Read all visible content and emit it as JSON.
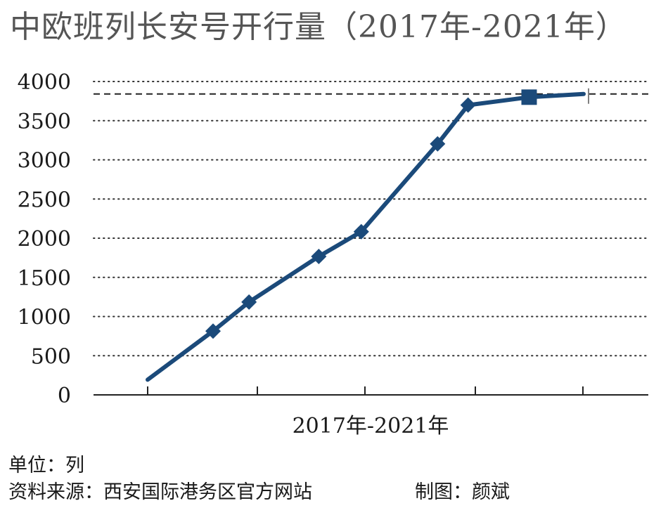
{
  "chart_data": {
    "type": "line",
    "title": "中欧班列长安号开行量（2017年-2021年）",
    "xlabel": "2017年-2021年",
    "ylabel": "",
    "ylim": [
      0,
      4000
    ],
    "yticks": [
      0,
      500,
      1000,
      1500,
      2000,
      2500,
      3000,
      3500,
      4000
    ],
    "grid": "horizontal dotted",
    "reference_line": {
      "value": 3841,
      "style": "dashed"
    },
    "series": [
      {
        "color": "#1b4a7a",
        "points": [
          {
            "x": 0,
            "y": 194,
            "marker": "none"
          },
          {
            "x": 0.6,
            "y": 814,
            "marker": "diamond"
          },
          {
            "x": 0.93,
            "y": 1185,
            "marker": "diamond"
          },
          {
            "x": 1.57,
            "y": 1767,
            "marker": "diamond"
          },
          {
            "x": 1.96,
            "y": 2083,
            "marker": "diamond"
          },
          {
            "x": 2.66,
            "y": 3204,
            "marker": "diamond"
          },
          {
            "x": 2.94,
            "y": 3699,
            "marker": "diamond"
          },
          {
            "x": 3.5,
            "y": 3800,
            "marker": "square"
          },
          {
            "x": 4,
            "y": 3841,
            "marker": "none"
          }
        ]
      }
    ]
  },
  "footer": {
    "unit": "单位：列",
    "source": "资料来源：西安国际港务区官方网站",
    "credit": "制图：颜斌"
  }
}
